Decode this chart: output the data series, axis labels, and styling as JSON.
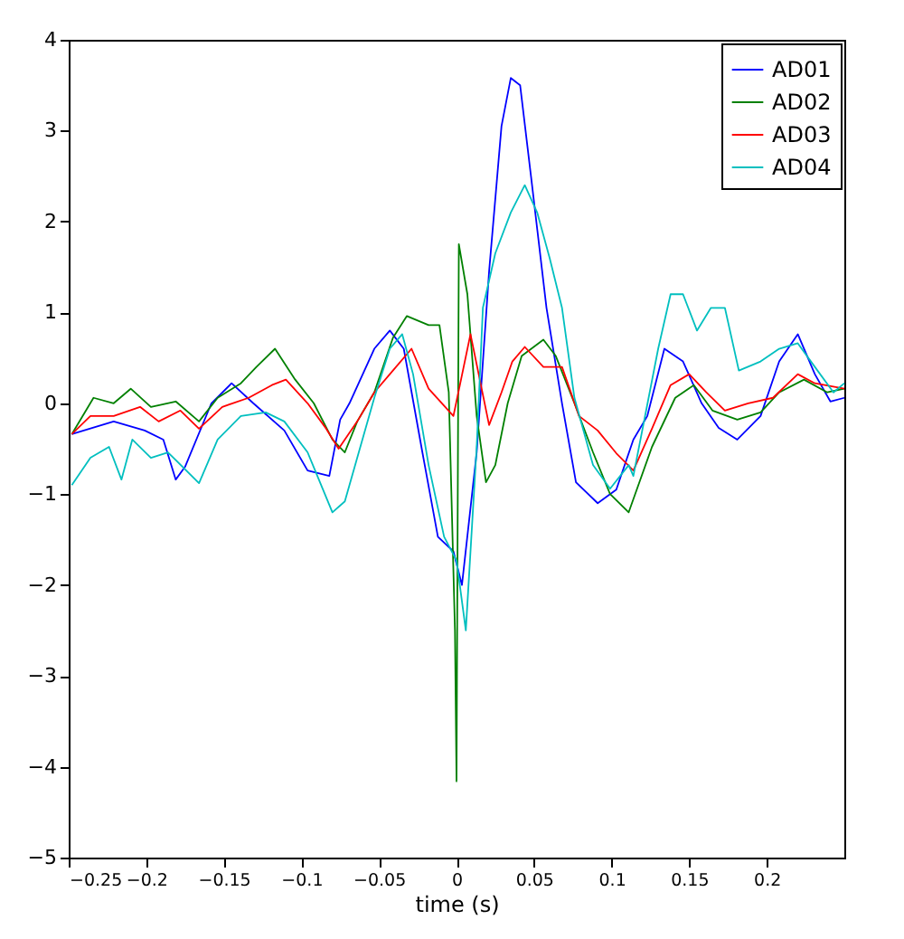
{
  "chart_data": {
    "type": "line",
    "xlabel": "time (s)",
    "xlim": [
      -0.25,
      0.25
    ],
    "xticks": [
      -0.25,
      -0.2,
      -0.15,
      -0.1,
      -0.05,
      0,
      0.05,
      0.1,
      0.15,
      0.2
    ],
    "ylim": [
      -5,
      4
    ],
    "yticks": [
      -5,
      -4,
      -3,
      -2,
      -1,
      0,
      1,
      2,
      3,
      4
    ],
    "grid": false,
    "legend": "top right",
    "marker": "none",
    "line_style": "solid",
    "series": [
      {
        "name": "AD01",
        "color": "#0000ff",
        "x": [
          -0.248,
          -0.221,
          -0.201,
          -0.189,
          -0.181,
          -0.175,
          -0.158,
          -0.145,
          -0.131,
          -0.111,
          -0.096,
          -0.082,
          -0.075,
          -0.069,
          -0.053,
          -0.043,
          -0.034,
          -0.022,
          -0.012,
          -0.002,
          0.0035,
          0.013,
          0.021,
          0.029,
          0.035,
          0.041,
          0.048,
          0.058,
          0.068,
          0.077,
          0.091,
          0.103,
          0.114,
          0.123,
          0.134,
          0.146,
          0.158,
          0.169,
          0.181,
          0.196,
          0.208,
          0.22,
          0.231,
          0.241,
          0.25
        ],
        "values": [
          -0.34,
          -0.2,
          -0.3,
          -0.4,
          -0.84,
          -0.7,
          0.0,
          0.22,
          0.0,
          -0.3,
          -0.74,
          -0.8,
          -0.18,
          0.0,
          0.6,
          0.8,
          0.6,
          -0.54,
          -1.47,
          -1.63,
          -2.0,
          -0.54,
          1.45,
          3.05,
          3.58,
          3.5,
          2.5,
          1.05,
          0.0,
          -0.87,
          -1.1,
          -0.95,
          -0.4,
          -0.14,
          0.6,
          0.46,
          0.0,
          -0.27,
          -0.4,
          -0.14,
          0.46,
          0.76,
          0.32,
          0.02,
          0.06
        ]
      },
      {
        "name": "AD02",
        "color": "#008000",
        "x": [
          -0.248,
          -0.234,
          -0.221,
          -0.21,
          -0.197,
          -0.181,
          -0.166,
          -0.154,
          -0.139,
          -0.129,
          -0.117,
          -0.104,
          -0.092,
          -0.08,
          -0.072,
          -0.064,
          -0.053,
          -0.041,
          -0.032,
          -0.018,
          -0.011,
          -0.005,
          -0.001,
          0.0,
          0.0015,
          0.007,
          0.013,
          0.019,
          0.025,
          0.033,
          0.042,
          0.056,
          0.064,
          0.076,
          0.088,
          0.099,
          0.111,
          0.126,
          0.141,
          0.153,
          0.165,
          0.181,
          0.196,
          0.208,
          0.224,
          0.239,
          0.25
        ],
        "values": [
          -0.34,
          0.06,
          0.0,
          0.16,
          -0.04,
          0.02,
          -0.2,
          0.06,
          0.22,
          0.4,
          0.6,
          0.26,
          0.0,
          -0.4,
          -0.54,
          -0.2,
          0.12,
          0.72,
          0.96,
          0.86,
          0.86,
          0.12,
          -2.5,
          -4.16,
          1.75,
          1.2,
          -0.14,
          -0.87,
          -0.68,
          0.0,
          0.52,
          0.7,
          0.52,
          0.0,
          -0.54,
          -1.0,
          -1.2,
          -0.48,
          0.06,
          0.2,
          -0.08,
          -0.18,
          -0.1,
          0.12,
          0.26,
          0.12,
          0.16
        ]
      },
      {
        "name": "AD03",
        "color": "#ff0000",
        "x": [
          -0.248,
          -0.236,
          -0.221,
          -0.204,
          -0.192,
          -0.178,
          -0.166,
          -0.151,
          -0.134,
          -0.119,
          -0.11,
          -0.096,
          -0.084,
          -0.076,
          -0.064,
          -0.053,
          -0.041,
          -0.029,
          -0.018,
          -0.002,
          0.009,
          0.015,
          0.021,
          0.029,
          0.036,
          0.044,
          0.056,
          0.068,
          0.079,
          0.091,
          0.103,
          0.114,
          0.126,
          0.138,
          0.15,
          0.161,
          0.173,
          0.188,
          0.204,
          0.22,
          0.231,
          0.25
        ],
        "values": [
          -0.34,
          -0.14,
          -0.14,
          -0.04,
          -0.2,
          -0.08,
          -0.28,
          -0.04,
          0.06,
          0.2,
          0.26,
          0.0,
          -0.28,
          -0.5,
          -0.2,
          0.12,
          0.36,
          0.6,
          0.16,
          -0.14,
          0.76,
          0.26,
          -0.24,
          0.12,
          0.46,
          0.62,
          0.4,
          0.4,
          -0.14,
          -0.3,
          -0.55,
          -0.74,
          -0.28,
          0.2,
          0.32,
          0.12,
          -0.08,
          0.0,
          0.06,
          0.32,
          0.22,
          0.16
        ]
      },
      {
        "name": "AD04",
        "color": "#00bfbf",
        "x": [
          -0.248,
          -0.236,
          -0.224,
          -0.216,
          -0.209,
          -0.197,
          -0.186,
          -0.166,
          -0.154,
          -0.139,
          -0.123,
          -0.111,
          -0.096,
          -0.08,
          -0.072,
          -0.064,
          -0.053,
          -0.043,
          -0.035,
          -0.028,
          -0.018,
          -0.008,
          0.0,
          0.006,
          0.013,
          0.017,
          0.025,
          0.035,
          0.044,
          0.052,
          0.06,
          0.068,
          0.076,
          0.088,
          0.099,
          0.111,
          0.114,
          0.13,
          0.138,
          0.146,
          0.155,
          0.164,
          0.173,
          0.182,
          0.196,
          0.208,
          0.22,
          0.231,
          0.243,
          0.25
        ],
        "values": [
          -0.9,
          -0.6,
          -0.48,
          -0.84,
          -0.4,
          -0.6,
          -0.54,
          -0.88,
          -0.4,
          -0.14,
          -0.1,
          -0.2,
          -0.54,
          -1.2,
          -1.08,
          -0.6,
          0.06,
          0.6,
          0.76,
          0.32,
          -0.68,
          -1.47,
          -1.73,
          -2.5,
          -0.48,
          1.05,
          1.65,
          2.1,
          2.4,
          2.1,
          1.6,
          1.05,
          0.06,
          -0.68,
          -0.94,
          -0.68,
          -0.8,
          0.6,
          1.2,
          1.2,
          0.8,
          1.05,
          1.05,
          0.36,
          0.46,
          0.6,
          0.66,
          0.4,
          0.12,
          0.22
        ]
      }
    ]
  }
}
